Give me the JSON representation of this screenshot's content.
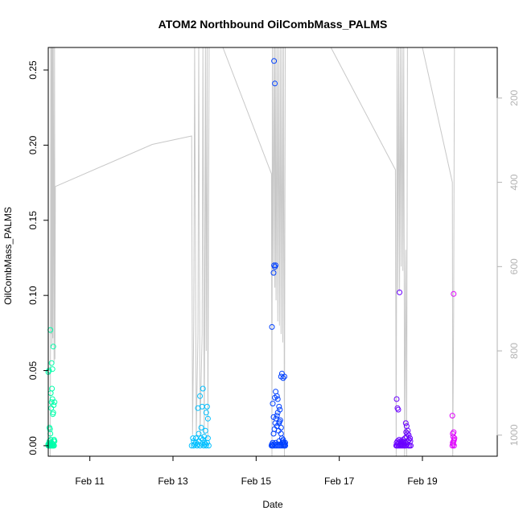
{
  "chart_data": {
    "type": "scatter",
    "title": "ATOM2 Northbound OilCombMass_PALMS",
    "xlabel": "Date",
    "ylabel": "OilCombMass_PALMS",
    "x_day_range": [
      10.0,
      20.8
    ],
    "ylim": [
      -0.007,
      0.265
    ],
    "y_ticks": [
      0.0,
      0.05,
      0.1,
      0.15,
      0.2,
      0.25
    ],
    "y_tick_labels": [
      "0.00",
      "0.05",
      "0.10",
      "0.15",
      "0.20",
      "0.25"
    ],
    "x_ticks": [
      11,
      13,
      15,
      17,
      19
    ],
    "x_tick_labels": [
      "Feb 11",
      "Feb 13",
      "Feb 15",
      "Feb 17",
      "Feb 19"
    ],
    "secondary_axis": {
      "side": "right",
      "quantity": "altitude",
      "range": [
        1050,
        80
      ],
      "ticks": [
        200,
        400,
        600,
        800,
        1000
      ],
      "tick_labels": [
        "200",
        "400",
        "600",
        "800",
        "1000"
      ],
      "color": "#b3b3b3"
    },
    "altitude_trace": [
      [
        10.05,
        1060
      ],
      [
        10.06,
        80
      ],
      [
        10.07,
        760
      ],
      [
        10.08,
        80
      ],
      [
        10.09,
        790
      ],
      [
        10.1,
        80
      ],
      [
        10.11,
        770
      ],
      [
        10.12,
        80
      ],
      [
        10.14,
        830
      ],
      [
        10.15,
        80
      ],
      [
        10.16,
        820
      ],
      [
        10.17,
        410
      ],
      [
        12.5,
        310
      ],
      [
        13.45,
        290
      ],
      [
        13.47,
        1000
      ],
      [
        13.5,
        740
      ],
      [
        13.52,
        80
      ],
      [
        13.56,
        1005
      ],
      [
        13.6,
        760
      ],
      [
        13.62,
        80
      ],
      [
        13.65,
        1000
      ],
      [
        13.7,
        760
      ],
      [
        13.72,
        80
      ],
      [
        13.75,
        1000
      ],
      [
        13.76,
        790
      ],
      [
        13.78,
        80
      ],
      [
        13.8,
        800
      ],
      [
        13.82,
        80
      ],
      [
        13.84,
        1010
      ],
      [
        13.87,
        80
      ],
      [
        14.2,
        80
      ],
      [
        15.37,
        380
      ],
      [
        15.38,
        1060
      ],
      [
        15.39,
        80
      ],
      [
        15.41,
        620
      ],
      [
        15.43,
        80
      ],
      [
        15.45,
        650
      ],
      [
        15.46,
        80
      ],
      [
        15.48,
        680
      ],
      [
        15.5,
        80
      ],
      [
        15.52,
        730
      ],
      [
        15.54,
        80
      ],
      [
        15.56,
        740
      ],
      [
        15.58,
        80
      ],
      [
        15.6,
        760
      ],
      [
        15.62,
        80
      ],
      [
        15.64,
        780
      ],
      [
        15.66,
        80
      ],
      [
        15.68,
        1060
      ],
      [
        15.7,
        80
      ],
      [
        15.72,
        80
      ],
      [
        16.8,
        80
      ],
      [
        18.35,
        370
      ],
      [
        18.37,
        1060
      ],
      [
        18.39,
        80
      ],
      [
        18.41,
        660
      ],
      [
        18.43,
        80
      ],
      [
        18.45,
        660
      ],
      [
        18.47,
        80
      ],
      [
        18.49,
        600
      ],
      [
        18.51,
        80
      ],
      [
        18.53,
        610
      ],
      [
        18.55,
        80
      ],
      [
        18.57,
        1060
      ],
      [
        18.6,
        560
      ],
      [
        18.62,
        1060
      ],
      [
        18.64,
        80
      ],
      [
        18.67,
        80
      ],
      [
        18.7,
        80
      ],
      [
        18.72,
        80
      ],
      [
        19.0,
        80
      ],
      [
        19.72,
        400
      ],
      [
        19.73,
        1060
      ],
      [
        19.75,
        720
      ],
      [
        19.77,
        80
      ]
    ],
    "series_colors": {
      "Feb10": "#00ffaa",
      "Feb13": "#00bfff",
      "Feb15": "#0040ff",
      "Feb18": "#6a00ff",
      "Feb19": "#e000ff"
    },
    "series": [
      {
        "color_key": "Feb10",
        "x": [
          10.0,
          10.0,
          10.01,
          10.02,
          10.02,
          10.03,
          10.03,
          10.04,
          10.04,
          10.05,
          10.05,
          10.06,
          10.06,
          10.07,
          10.07,
          10.08,
          10.08,
          10.09,
          10.09,
          10.1,
          10.1,
          10.11,
          10.11,
          10.12,
          10.12,
          10.13,
          10.13,
          10.14,
          10.14,
          10.15,
          10.0,
          10.02,
          10.05,
          10.08,
          10.1,
          10.12,
          10.15,
          10.03,
          10.06
        ],
        "y": [
          0.0,
          0.001,
          0.0,
          0.002,
          0.001,
          0.0,
          0.003,
          0.0,
          0.011,
          0.0,
          0.008,
          0.001,
          0.035,
          0.0,
          0.025,
          0.002,
          0.029,
          0.0,
          0.038,
          0.001,
          0.031,
          0.0,
          0.021,
          0.0,
          0.022,
          0.003,
          0.027,
          0.0,
          0.004,
          0.029,
          0.049,
          0.05,
          0.077,
          0.055,
          0.051,
          0.066,
          0.003,
          0.012,
          0.004
        ]
      },
      {
        "color_key": "Feb13",
        "x": [
          13.45,
          13.48,
          13.5,
          13.52,
          13.55,
          13.58,
          13.6,
          13.62,
          13.65,
          13.68,
          13.7,
          13.72,
          13.74,
          13.76,
          13.78,
          13.8,
          13.82,
          13.84,
          13.86,
          13.5,
          13.6,
          13.65,
          13.68,
          13.7,
          13.72,
          13.8,
          13.82,
          13.84,
          13.55,
          13.62,
          13.75,
          13.78
        ],
        "y": [
          0.0,
          0.005,
          0.0,
          0.001,
          0.002,
          0.0,
          0.001,
          0.003,
          0.0,
          0.005,
          0.001,
          0.004,
          0.0,
          0.002,
          0.001,
          0.0,
          0.002,
          0.005,
          0.0,
          0.003,
          0.025,
          0.033,
          0.012,
          0.026,
          0.038,
          0.022,
          0.026,
          0.018,
          0.005,
          0.008,
          0.006,
          0.01
        ]
      },
      {
        "color_key": "Feb15",
        "x": [
          15.37,
          15.38,
          15.39,
          15.4,
          15.41,
          15.42,
          15.43,
          15.44,
          15.45,
          15.46,
          15.47,
          15.48,
          15.49,
          15.5,
          15.51,
          15.52,
          15.53,
          15.54,
          15.55,
          15.56,
          15.57,
          15.58,
          15.59,
          15.6,
          15.61,
          15.62,
          15.63,
          15.64,
          15.65,
          15.66,
          15.67,
          15.68,
          15.69,
          15.7,
          15.4,
          15.42,
          15.45,
          15.47,
          15.5,
          15.52,
          15.55,
          15.57,
          15.6,
          15.62,
          15.65,
          15.68,
          15.38,
          15.42,
          15.43,
          15.45,
          15.47,
          15.43,
          15.45,
          15.5,
          15.55,
          15.6,
          15.65,
          15.7
        ],
        "y": [
          0.0,
          0.001,
          0.0,
          0.002,
          0.0,
          0.008,
          0.001,
          0.011,
          0.0,
          0.015,
          0.002,
          0.018,
          0.0,
          0.013,
          0.001,
          0.022,
          0.0,
          0.01,
          0.003,
          0.016,
          0.0,
          0.017,
          0.001,
          0.012,
          0.0,
          0.005,
          0.002,
          0.003,
          0.0,
          0.001,
          0.002,
          0.0,
          0.001,
          0.0,
          0.028,
          0.019,
          0.032,
          0.036,
          0.033,
          0.031,
          0.026,
          0.024,
          0.046,
          0.048,
          0.045,
          0.046,
          0.079,
          0.115,
          0.12,
          0.119,
          0.12,
          0.256,
          0.241,
          0.02,
          0.015,
          0.008,
          0.004,
          0.002
        ]
      },
      {
        "color_key": "Feb18",
        "x": [
          18.37,
          18.38,
          18.39,
          18.4,
          18.41,
          18.42,
          18.43,
          18.44,
          18.45,
          18.46,
          18.47,
          18.48,
          18.49,
          18.5,
          18.51,
          18.52,
          18.53,
          18.54,
          18.55,
          18.56,
          18.57,
          18.58,
          18.59,
          18.6,
          18.61,
          18.62,
          18.63,
          18.64,
          18.65,
          18.66,
          18.67,
          18.68,
          18.69,
          18.7,
          18.71,
          18.72,
          18.38,
          18.4,
          18.42,
          18.45,
          18.6,
          18.62,
          18.65
        ],
        "y": [
          0.0,
          0.002,
          0.0,
          0.003,
          0.001,
          0.0,
          0.002,
          0.004,
          0.0,
          0.001,
          0.003,
          0.0,
          0.002,
          0.001,
          0.0,
          0.003,
          0.004,
          0.0,
          0.002,
          0.001,
          0.0,
          0.005,
          0.002,
          0.0,
          0.009,
          0.006,
          0.001,
          0.008,
          0.003,
          0.0,
          0.007,
          0.004,
          0.0,
          0.005,
          0.003,
          0.0,
          0.031,
          0.025,
          0.024,
          0.102,
          0.015,
          0.013,
          0.01
        ]
      },
      {
        "color_key": "Feb19",
        "x": [
          19.72,
          19.73,
          19.74,
          19.75,
          19.76,
          19.77,
          19.73,
          19.75,
          19.74,
          19.76,
          19.72,
          19.75
        ],
        "y": [
          0.0,
          0.002,
          0.001,
          0.003,
          0.0,
          0.005,
          0.008,
          0.009,
          0.006,
          0.004,
          0.02,
          0.101
        ]
      }
    ]
  }
}
